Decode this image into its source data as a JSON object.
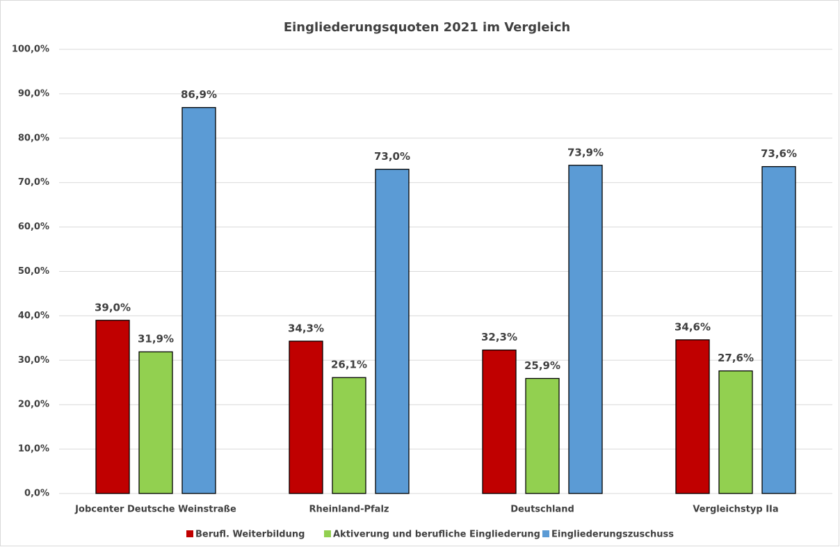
{
  "chart_data": {
    "type": "bar",
    "title": "Eingliederungsquoten 2021 im Vergleich",
    "categories": [
      "Jobcenter Deutsche Weinstraße",
      "Rheinland-Pfalz",
      "Deutschland",
      "Vergleichstyp IIa"
    ],
    "series": [
      {
        "name": "Berufl. Weiterbildung",
        "color": "#c00000",
        "values": [
          39.0,
          34.3,
          32.3,
          34.6
        ],
        "value_labels": [
          "39,0%",
          "34,3%",
          "32,3%",
          "34,6%"
        ]
      },
      {
        "name": "Aktiverung und berufliche Eingliederung",
        "color": "#92d050",
        "values": [
          31.9,
          26.1,
          25.9,
          27.6
        ],
        "value_labels": [
          "31,9%",
          "26,1%",
          "25,9%",
          "27,6%"
        ]
      },
      {
        "name": "Eingliederungszuschuss",
        "color": "#5b9bd5",
        "values": [
          86.9,
          73.0,
          73.9,
          73.6
        ],
        "value_labels": [
          "86,9%",
          "73,0%",
          "73,9%",
          "73,6%"
        ]
      }
    ],
    "ylim": [
      0,
      100
    ],
    "yticks": [
      {
        "value": 0,
        "label": "0,0%"
      },
      {
        "value": 10,
        "label": "10,0%"
      },
      {
        "value": 20,
        "label": "20,0%"
      },
      {
        "value": 30,
        "label": "30,0%"
      },
      {
        "value": 40,
        "label": "40,0%"
      },
      {
        "value": 50,
        "label": "50,0%"
      },
      {
        "value": 60,
        "label": "60,0%"
      },
      {
        "value": 70,
        "label": "70,0%"
      },
      {
        "value": 80,
        "label": "80,0%"
      },
      {
        "value": 90,
        "label": "90,0%"
      },
      {
        "value": 100,
        "label": "100,0%"
      }
    ],
    "grid": true,
    "legend": "bottom"
  }
}
